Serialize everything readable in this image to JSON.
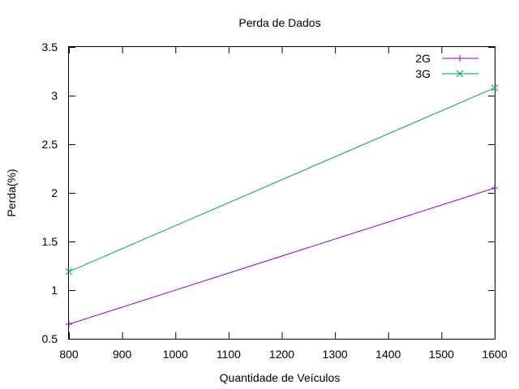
{
  "chart_data": {
    "type": "line",
    "title": "Perda de Dados",
    "xlabel": "Quantidade de Veículos",
    "ylabel": "Perda(%)",
    "xlim": [
      800,
      1600
    ],
    "ylim": [
      0.5,
      3.5
    ],
    "xticks": [
      800,
      900,
      1000,
      1100,
      1200,
      1300,
      1400,
      1500,
      1600
    ],
    "yticks": [
      "0.5",
      "1",
      "1.5",
      "2",
      "2.5",
      "3",
      "3.5"
    ],
    "grid": false,
    "legend_position": "top-right",
    "series": [
      {
        "name": "2G",
        "color": "#9400d3",
        "marker": "plus",
        "x": [
          800,
          1600
        ],
        "y": [
          0.65,
          2.05
        ]
      },
      {
        "name": "3G",
        "color": "#009e73",
        "marker": "cross",
        "x": [
          800,
          1600
        ],
        "y": [
          1.19,
          3.08
        ]
      }
    ]
  }
}
